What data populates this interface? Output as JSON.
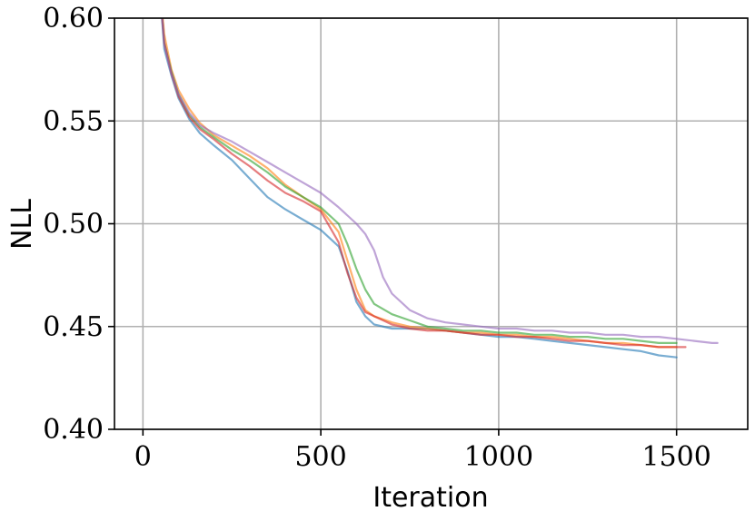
{
  "chart_data": {
    "type": "line",
    "title": "",
    "xlabel": "Iteration",
    "ylabel": "NLL",
    "xlim": [
      -80,
      1700
    ],
    "ylim": [
      0.4,
      0.6
    ],
    "xticks": [
      0,
      500,
      1000,
      1500
    ],
    "xtick_labels": [
      "0",
      "500",
      "1000",
      "1500"
    ],
    "yticks": [
      0.4,
      0.45,
      0.5,
      0.55,
      0.6
    ],
    "ytick_labels": [
      "0.40",
      "0.45",
      "0.50",
      "0.55",
      "0.60"
    ],
    "grid": true,
    "legend": "none",
    "series": [
      {
        "color": "#1f77b4",
        "x": [
          45,
          60,
          80,
          100,
          130,
          160,
          200,
          250,
          300,
          350,
          400,
          450,
          500,
          550,
          575,
          600,
          625,
          650,
          700,
          750,
          800,
          850,
          900,
          950,
          1000,
          1050,
          1100,
          1150,
          1200,
          1250,
          1300,
          1350,
          1400,
          1450,
          1500
        ],
        "y": [
          0.62,
          0.585,
          0.572,
          0.561,
          0.551,
          0.544,
          0.538,
          0.531,
          0.522,
          0.513,
          0.507,
          0.502,
          0.497,
          0.489,
          0.477,
          0.462,
          0.455,
          0.451,
          0.449,
          0.449,
          0.449,
          0.448,
          0.447,
          0.446,
          0.445,
          0.445,
          0.444,
          0.443,
          0.442,
          0.441,
          0.44,
          0.439,
          0.438,
          0.436,
          0.435
        ]
      },
      {
        "color": "#ff7f0e",
        "x": [
          45,
          60,
          80,
          100,
          130,
          160,
          200,
          250,
          300,
          350,
          400,
          450,
          500,
          550,
          575,
          600,
          625,
          650,
          700,
          750,
          800,
          850,
          900,
          950,
          1000,
          1050,
          1100,
          1150,
          1200,
          1250,
          1300,
          1350,
          1400,
          1450,
          1500
        ],
        "y": [
          0.62,
          0.592,
          0.575,
          0.565,
          0.556,
          0.549,
          0.543,
          0.538,
          0.533,
          0.527,
          0.519,
          0.513,
          0.507,
          0.496,
          0.482,
          0.468,
          0.458,
          0.455,
          0.452,
          0.45,
          0.449,
          0.448,
          0.447,
          0.447,
          0.446,
          0.446,
          0.445,
          0.445,
          0.444,
          0.443,
          0.442,
          0.442,
          0.441,
          0.44,
          0.44
        ]
      },
      {
        "color": "#2ca02c",
        "x": [
          45,
          60,
          80,
          100,
          130,
          160,
          200,
          250,
          300,
          350,
          400,
          450,
          500,
          550,
          575,
          600,
          625,
          650,
          700,
          750,
          800,
          850,
          900,
          950,
          1000,
          1050,
          1100,
          1150,
          1200,
          1250,
          1300,
          1350,
          1400,
          1450,
          1500
        ],
        "y": [
          0.62,
          0.588,
          0.574,
          0.563,
          0.553,
          0.547,
          0.542,
          0.536,
          0.531,
          0.525,
          0.518,
          0.513,
          0.508,
          0.5,
          0.49,
          0.478,
          0.468,
          0.461,
          0.456,
          0.453,
          0.45,
          0.449,
          0.448,
          0.448,
          0.447,
          0.447,
          0.446,
          0.446,
          0.445,
          0.445,
          0.444,
          0.444,
          0.443,
          0.442,
          0.442
        ]
      },
      {
        "color": "#d62728",
        "x": [
          45,
          60,
          80,
          100,
          130,
          160,
          200,
          250,
          300,
          350,
          400,
          450,
          500,
          550,
          575,
          600,
          625,
          650,
          700,
          750,
          800,
          850,
          900,
          950,
          1000,
          1050,
          1100,
          1150,
          1200,
          1250,
          1300,
          1350,
          1400,
          1450,
          1500,
          1525
        ],
        "y": [
          0.62,
          0.588,
          0.573,
          0.562,
          0.552,
          0.546,
          0.541,
          0.534,
          0.528,
          0.521,
          0.515,
          0.511,
          0.506,
          0.491,
          0.476,
          0.464,
          0.457,
          0.455,
          0.451,
          0.449,
          0.448,
          0.448,
          0.447,
          0.446,
          0.446,
          0.445,
          0.445,
          0.444,
          0.443,
          0.443,
          0.442,
          0.441,
          0.441,
          0.44,
          0.44,
          0.44
        ]
      },
      {
        "color": "#9467bd",
        "x": [
          45,
          60,
          80,
          100,
          130,
          160,
          200,
          250,
          300,
          350,
          400,
          450,
          500,
          550,
          600,
          625,
          650,
          675,
          700,
          750,
          800,
          850,
          900,
          950,
          1000,
          1050,
          1100,
          1150,
          1200,
          1250,
          1300,
          1350,
          1400,
          1450,
          1500,
          1550,
          1600,
          1615
        ],
        "y": [
          0.62,
          0.587,
          0.573,
          0.563,
          0.554,
          0.548,
          0.544,
          0.54,
          0.535,
          0.53,
          0.525,
          0.52,
          0.515,
          0.508,
          0.5,
          0.495,
          0.487,
          0.474,
          0.466,
          0.458,
          0.454,
          0.452,
          0.451,
          0.45,
          0.449,
          0.449,
          0.448,
          0.448,
          0.447,
          0.447,
          0.446,
          0.446,
          0.445,
          0.445,
          0.444,
          0.443,
          0.442,
          0.442
        ]
      }
    ]
  }
}
